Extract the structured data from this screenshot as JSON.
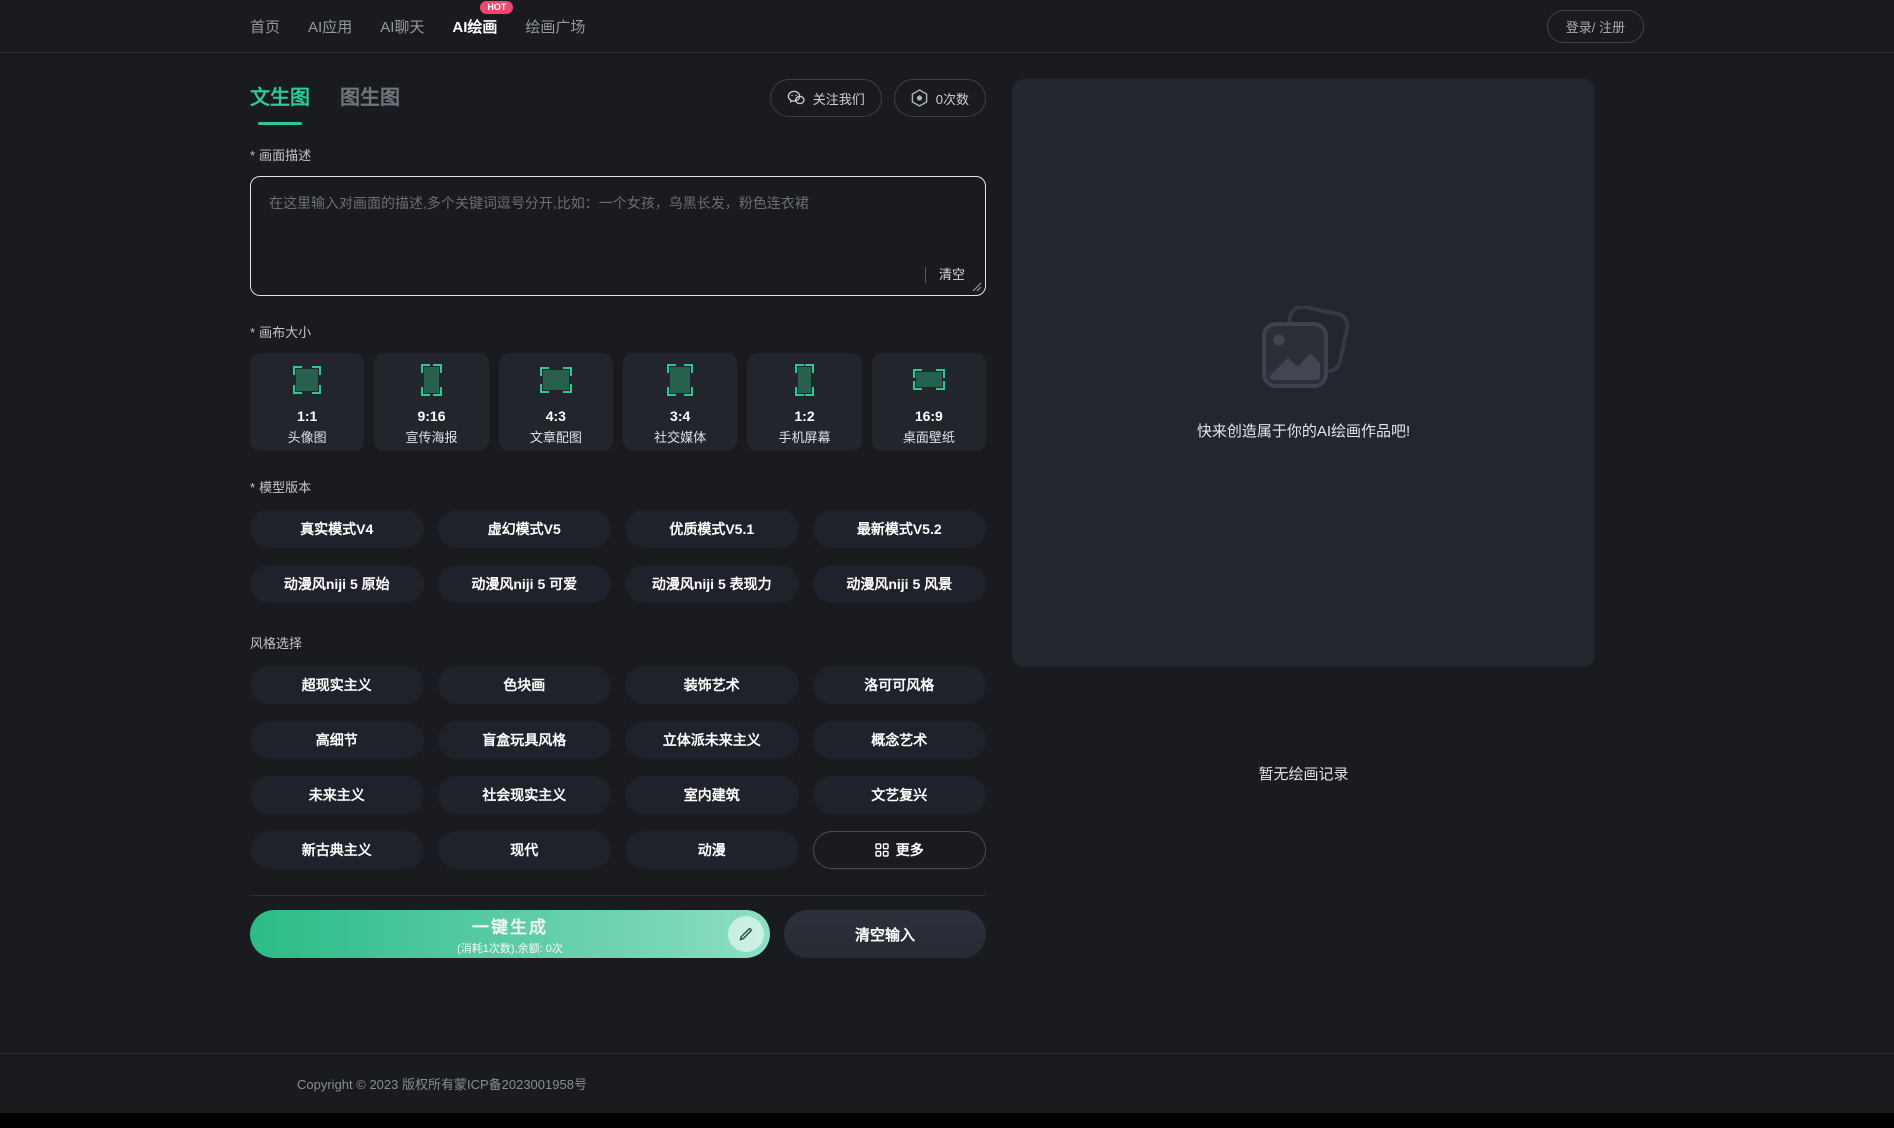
{
  "accent_color": "#2fc794",
  "header": {
    "nav": [
      {
        "label": "首页",
        "active": false
      },
      {
        "label": "AI应用",
        "active": false
      },
      {
        "label": "AI聊天",
        "active": false
      },
      {
        "label": "AI绘画",
        "active": true,
        "badge": "HOT"
      },
      {
        "label": "绘画广场",
        "active": false
      }
    ],
    "login_label": "登录/ 注册"
  },
  "tabs": [
    {
      "label": "文生图",
      "active": true
    },
    {
      "label": "图生图",
      "active": false
    }
  ],
  "toolbar": {
    "follow_label": "关注我们",
    "credits_label": "0次数"
  },
  "prompt": {
    "required_mark": "*",
    "label": "画面描述",
    "placeholder": "在这里输入对画面的描述,多个关键词逗号分开,比如：一个女孩，乌黑长发，粉色连衣裙",
    "value": "",
    "clear_label": "清空"
  },
  "canvas_size": {
    "required_mark": "*",
    "label": "画布大小",
    "options": [
      {
        "ratio": "1:1",
        "name": "头像图"
      },
      {
        "ratio": "9:16",
        "name": "宣传海报"
      },
      {
        "ratio": "4:3",
        "name": "文章配图"
      },
      {
        "ratio": "3:4",
        "name": "社交媒体"
      },
      {
        "ratio": "1:2",
        "name": "手机屏幕"
      },
      {
        "ratio": "16:9",
        "name": "桌面壁纸"
      }
    ]
  },
  "model_version": {
    "required_mark": "*",
    "label": "模型版本",
    "options": [
      "真实模式V4",
      "虚幻模式V5",
      "优质模式V5.1",
      "最新模式V5.2",
      "动漫风niji 5 原始",
      "动漫风niji 5 可爱",
      "动漫风niji 5 表现力",
      "动漫风niji 5 风景"
    ]
  },
  "style_select": {
    "label": "风格选择",
    "options": [
      "超现实主义",
      "色块画",
      "装饰艺术",
      "洛可可风格",
      "高细节",
      "盲盒玩具风格",
      "立体派未来主义",
      "概念艺术",
      "未来主义",
      "社会现实主义",
      "室内建筑",
      "文艺复兴",
      "新古典主义",
      "现代",
      "动漫"
    ],
    "more_label": "更多"
  },
  "actions": {
    "generate_label": "一键生成",
    "generate_sub": "(消耗1次数),余额: 0次",
    "clear_input_label": "清空输入"
  },
  "preview": {
    "empty_text": "快来创造属于你的AI绘画作品吧!",
    "history_empty_text": "暂无绘画记录"
  },
  "footer": {
    "copyright": "Copyright © 2023 版权所有蒙ICP备2023001958号"
  }
}
